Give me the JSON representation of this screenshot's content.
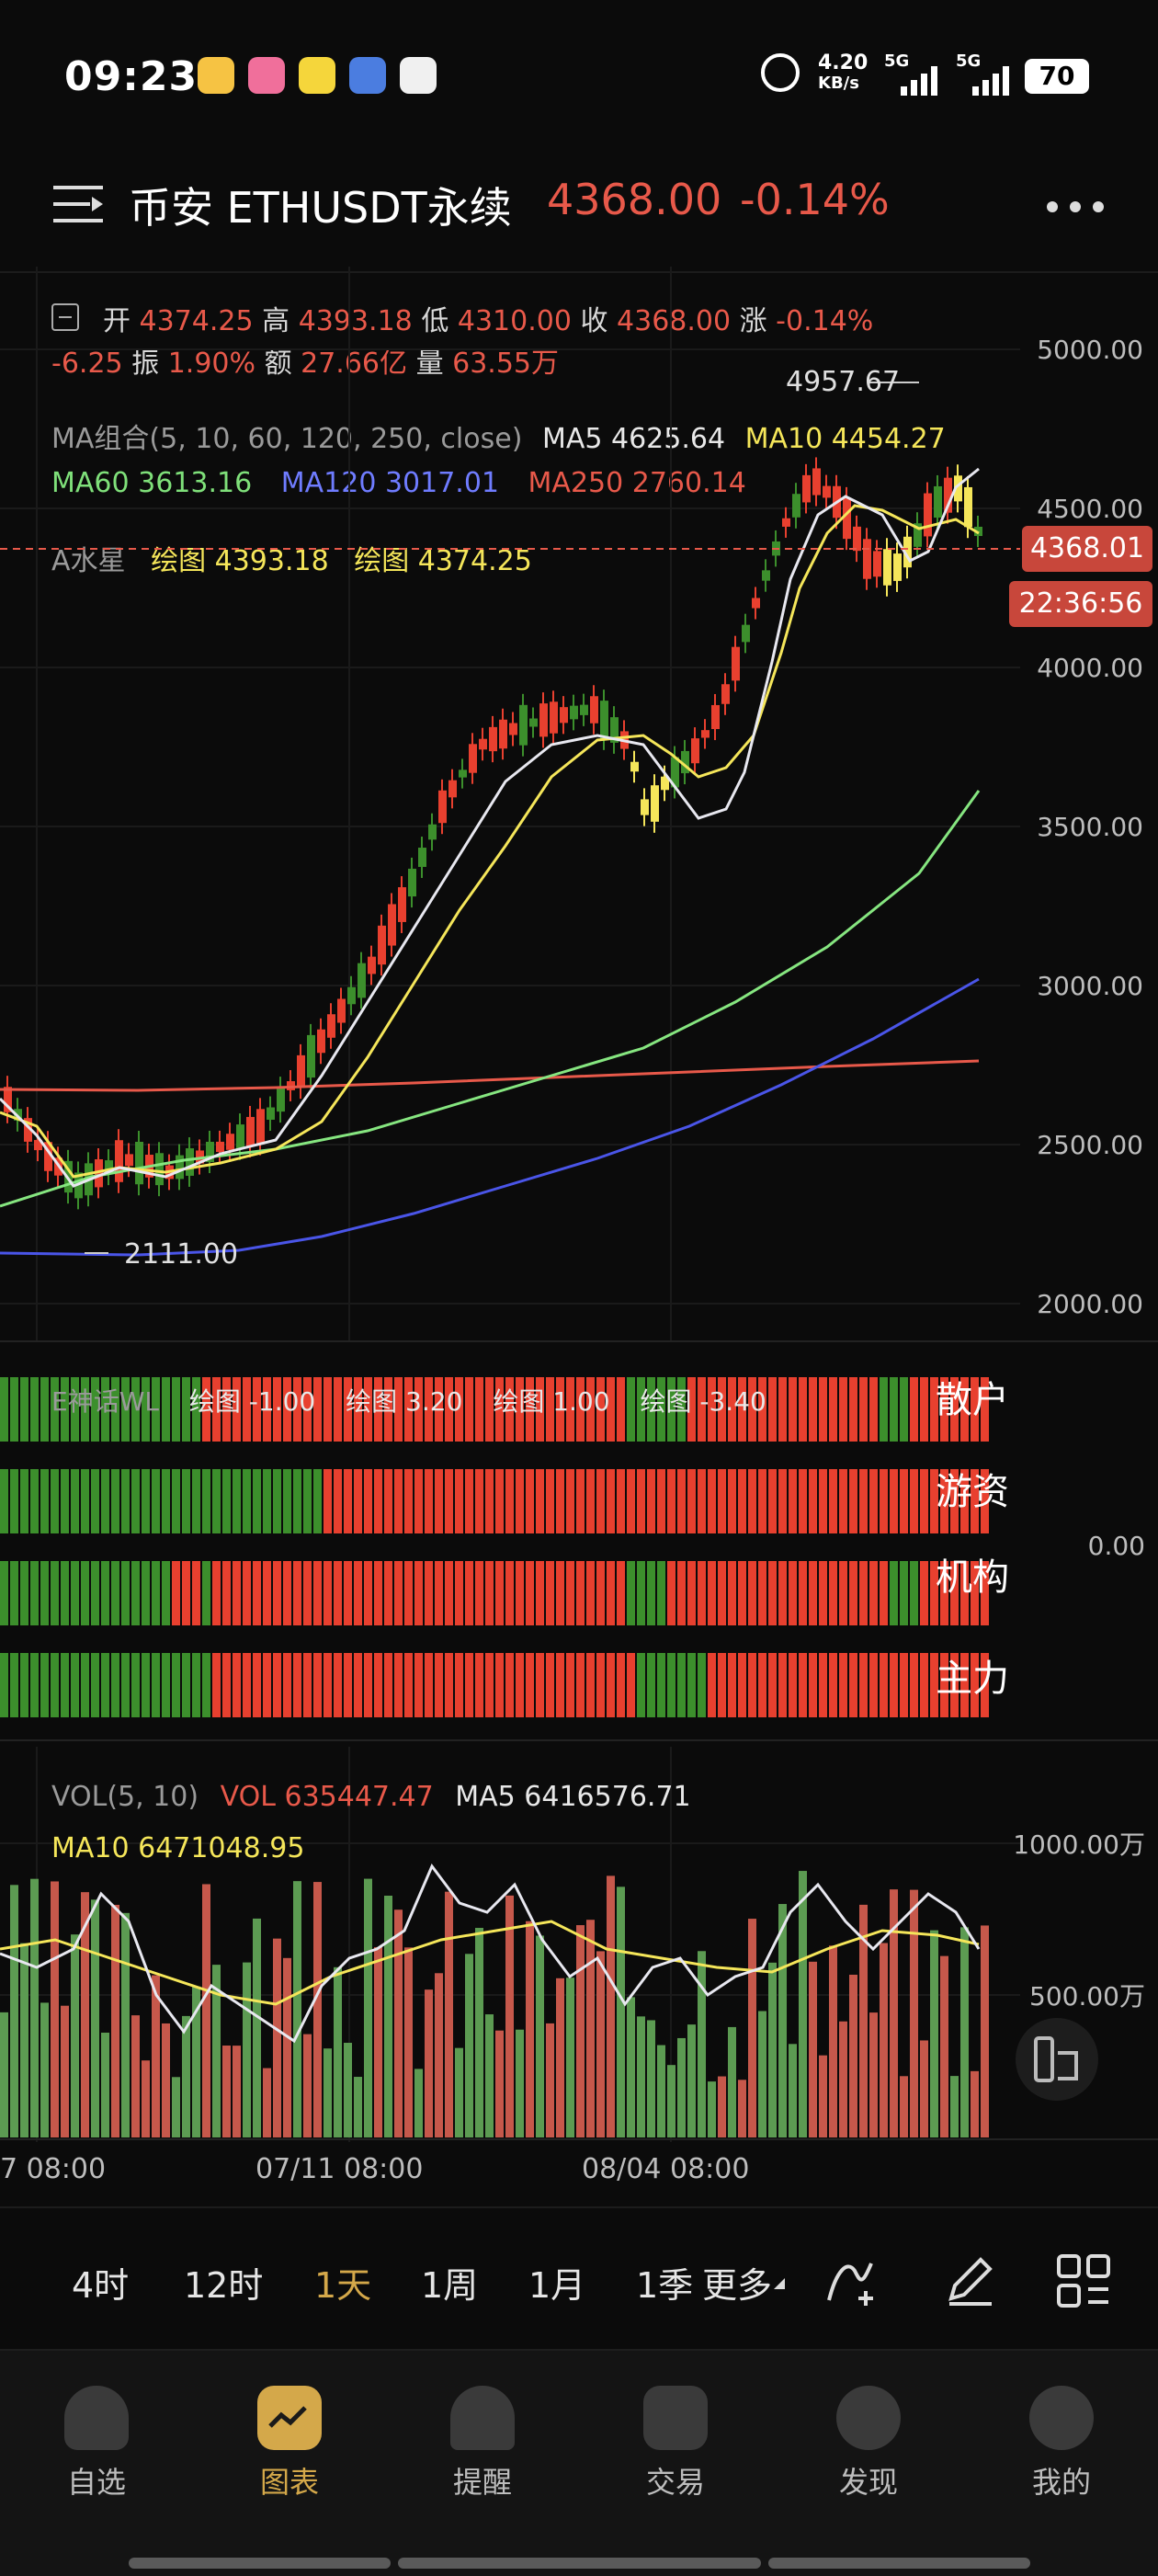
{
  "status": {
    "time": "09:23",
    "net_speed_top": "4.20",
    "net_speed_bottom": "KB/s",
    "sig1": "5G",
    "sig2": "5G",
    "battery": "70"
  },
  "header": {
    "title": "币安 ETHUSDT永续",
    "price": "4368.00",
    "change": "-0.14%"
  },
  "ohlc": {
    "open_lbl": "开",
    "open": "4374.25",
    "high_lbl": "高",
    "high": "4393.18",
    "low_lbl": "低",
    "low": "4310.00",
    "close_lbl": "收",
    "close": "4368.00",
    "chg_lbl": "涨",
    "chg": "-0.14%",
    "diff": "-6.25",
    "amp_lbl": "振",
    "amp": "1.90%",
    "amt_lbl": "额",
    "amt": "27.66亿",
    "vol_lbl": "量",
    "vol": "63.55万"
  },
  "ma": {
    "combo": "MA组合(5, 10, 60, 120, 250, close)",
    "ma5": "MA5 4625.64",
    "ma10": "MA10 4454.27",
    "ma60": "MA60 3613.16",
    "ma120": "MA120 3017.01",
    "ma250": "MA250 2760.14"
  },
  "shuixing": {
    "name": "A水星",
    "v1": "绘图 4393.18",
    "v2": "绘图 4374.25"
  },
  "chart_marks": {
    "high_mark": "4957.67",
    "low_mark": "2111.00",
    "price_tag": "4368.01",
    "countdown": "22:36:56"
  },
  "yaxis": [
    "5000.00",
    "4500.00",
    "4000.00",
    "3500.00",
    "3000.00",
    "2500.00",
    "2000.00"
  ],
  "wl": {
    "name": "E神话WL",
    "v1": "绘图 -1.00",
    "v2": "绘图 3.20",
    "v3": "绘图 1.00",
    "v4": "绘图 -3.40",
    "rows": [
      "散户",
      "游资",
      "机构",
      "主力"
    ],
    "zero": "0.00"
  },
  "vol": {
    "name": "VOL(5, 10)",
    "vol": "VOL 635447.47",
    "ma5": "MA5 6416576.71",
    "ma10": "MA10 6471048.95",
    "y1": "1000.00万",
    "y2": "500.00万"
  },
  "dates": [
    "7 08:00",
    "07/11 08:00",
    "08/04 08:00"
  ],
  "tabs": [
    "4时",
    "12时",
    "1天",
    "1周",
    "1月",
    "1季",
    "更多"
  ],
  "nav": [
    "自选",
    "图表",
    "提醒",
    "交易",
    "发现",
    "我的"
  ],
  "colors": {
    "up": "#e8402f",
    "down": "#3c8f2c",
    "yellow": "#f5e65a",
    "accent": "#d4a84a"
  }
}
